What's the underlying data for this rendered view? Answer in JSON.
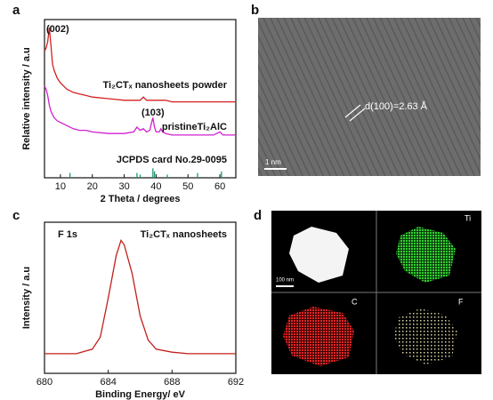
{
  "chart_data": [
    {
      "type": "line",
      "panel": "a",
      "xlabel": "2 Theta / degrees",
      "ylabel": "Relative intensity / a.u",
      "x": [
        5,
        5.5,
        6,
        6.5,
        7,
        7.5,
        8,
        9,
        10,
        12,
        14,
        16,
        18,
        20,
        25,
        30,
        33,
        34,
        35,
        36,
        37,
        38,
        38.5,
        39,
        39.5,
        40,
        41,
        41.5,
        42,
        43,
        45,
        50,
        55,
        58,
        60,
        61,
        62,
        65
      ],
      "series": [
        {
          "name": "Ti₂CTₓ nanosheets powder",
          "color": "#d42020",
          "values": [
            80,
            82,
            86,
            95,
            84,
            72,
            68,
            63,
            60,
            56,
            54,
            53,
            52,
            51,
            50,
            49,
            49,
            49,
            49,
            51,
            49,
            49,
            49,
            49,
            49,
            49,
            49,
            49,
            49,
            49,
            48,
            48,
            48,
            48,
            48,
            48,
            48,
            48
          ]
        },
        {
          "name": "pristineTi₂AlC",
          "color": "#d020d0",
          "values": [
            58,
            56,
            52,
            46,
            42,
            40,
            38,
            36,
            35,
            33,
            31,
            30,
            30,
            29,
            28,
            28,
            29,
            32,
            30,
            31,
            29,
            30,
            34,
            38,
            32,
            29,
            29,
            31,
            29,
            28,
            27,
            27,
            27,
            27,
            29,
            27,
            27,
            27
          ]
        }
      ],
      "reference": {
        "name": "JCPDS card No.29-0095",
        "color": "#1a9a6a",
        "x": [
          13,
          34,
          35,
          39,
          39.5,
          43.5,
          53,
          60.5
        ],
        "values": [
          3,
          3,
          2,
          6,
          4,
          2,
          3,
          4
        ]
      },
      "annotations": [
        "(002)",
        "(103)"
      ],
      "xlim": [
        5,
        65
      ],
      "xticks": [
        10,
        20,
        30,
        40,
        50,
        60
      ],
      "ylim": [
        0,
        100
      ]
    },
    {
      "type": "line",
      "panel": "c",
      "xlabel": "Binding Energy/ eV",
      "ylabel": "Intensity / a.u",
      "x": [
        680,
        681,
        682,
        683,
        683.5,
        684,
        684.5,
        684.8,
        685,
        685.5,
        686,
        686.5,
        687,
        688,
        689,
        690,
        691,
        692
      ],
      "series": [
        {
          "name": "Ti₂CTₓ nanosheets",
          "color": "#c0201a",
          "values": [
            13,
            13,
            13,
            16,
            24,
            50,
            78,
            88,
            85,
            66,
            38,
            22,
            16,
            14,
            13,
            13,
            13,
            13
          ]
        }
      ],
      "annotations": [
        "F 1s"
      ],
      "xlim": [
        680,
        692
      ],
      "xticks": [
        680,
        684,
        688,
        692
      ],
      "ylim": [
        0,
        100
      ]
    }
  ],
  "images": [
    {
      "panel": "b",
      "annotation": "d(100)=2.63 Å",
      "scale_bar": "1 nm"
    },
    {
      "panel": "d",
      "scale_bar": "100 nm",
      "maps": [
        "Ti",
        "C",
        "F"
      ]
    }
  ]
}
